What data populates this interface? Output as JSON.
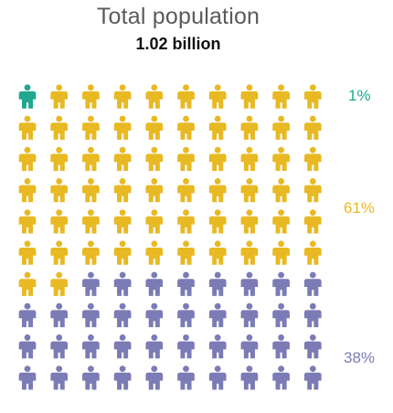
{
  "header": {
    "title": "Total population",
    "total": "1.02 billion"
  },
  "chart_data": {
    "type": "pictograph",
    "total_icons": 100,
    "columns": 10,
    "icon": "person-icon",
    "series": [
      {
        "label": "1%",
        "value": 1,
        "color": "#1fa88e"
      },
      {
        "label": "61%",
        "value": 61,
        "color": "#e8b923"
      },
      {
        "label": "38%",
        "value": 38,
        "color": "#7b7bb5"
      }
    ]
  }
}
